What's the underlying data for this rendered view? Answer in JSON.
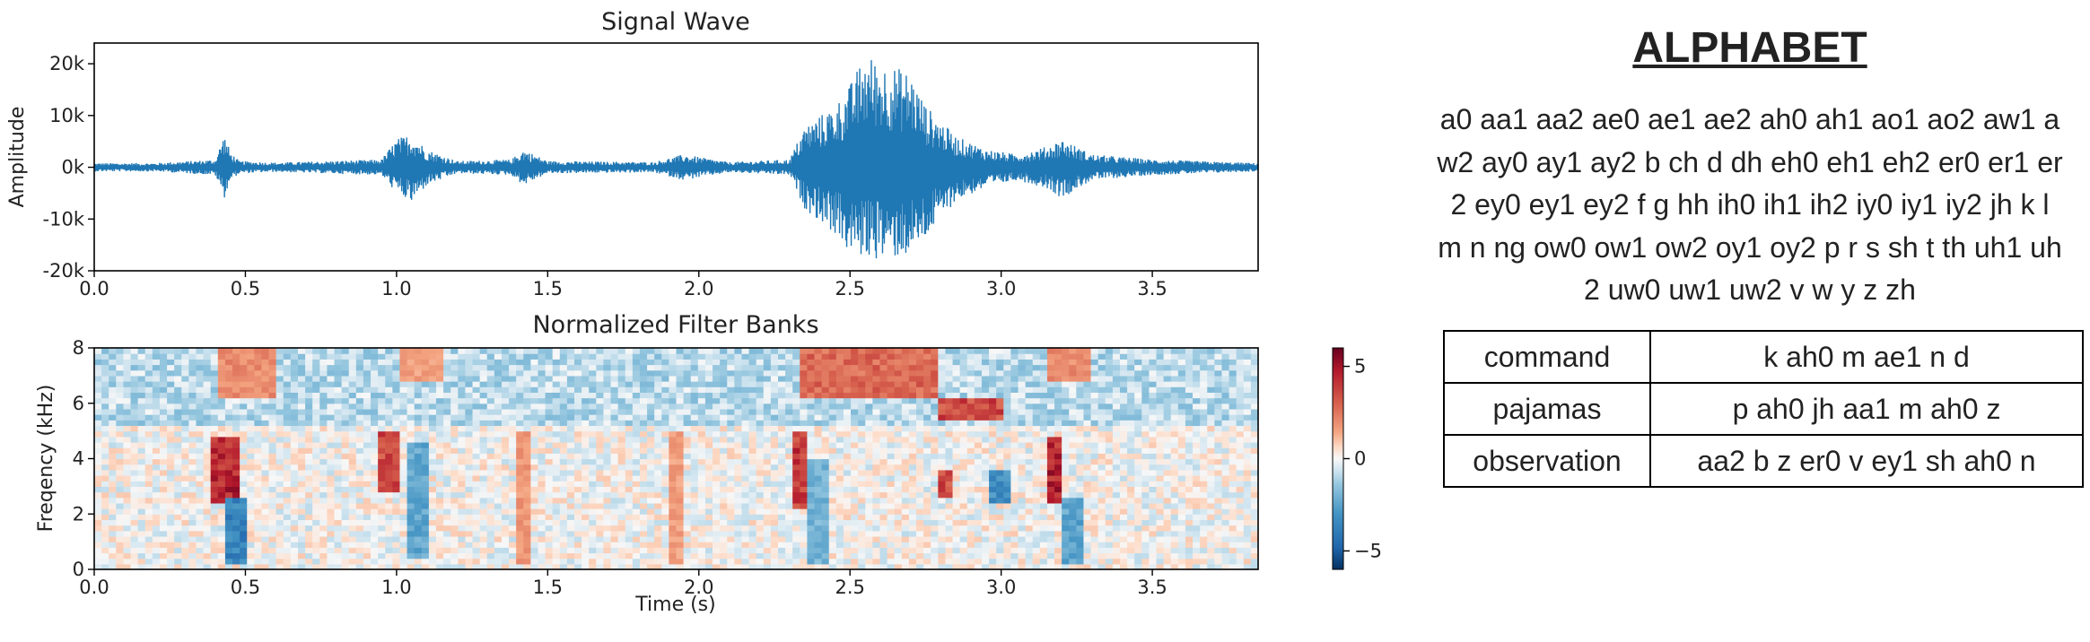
{
  "chart_data": [
    {
      "type": "line",
      "title": "Signal Wave",
      "xlabel": "",
      "ylabel": "Amplitude",
      "xlim": [
        0,
        3.85
      ],
      "ylim": [
        -20000,
        24000
      ],
      "xticks": [
        0,
        0.5,
        1.0,
        1.5,
        2.0,
        2.5,
        3.0,
        3.5
      ],
      "xtick_labels": [
        "0.0",
        "0.5",
        "1.0",
        "1.5",
        "2.0",
        "2.5",
        "3.0",
        "3.5"
      ],
      "yticks": [
        -20000,
        -10000,
        0,
        10000,
        20000
      ],
      "ytick_labels": [
        "-20k",
        "-10k",
        "0k",
        "10k",
        "20k"
      ],
      "color": "#1f77b4",
      "series": [
        {
          "x": [
            0.0,
            0.2,
            0.4,
            0.43,
            0.45,
            0.48,
            0.6,
            0.95,
            1.0,
            1.05,
            1.1,
            1.2,
            1.38,
            1.42,
            1.5,
            1.85,
            1.95,
            2.1,
            2.3,
            2.35,
            2.45,
            2.5,
            2.55,
            2.62,
            2.7,
            2.75,
            2.8,
            2.85,
            2.95,
            3.05,
            3.15,
            3.2,
            3.3,
            3.5,
            3.85
          ],
          "y_upper": [
            800,
            800,
            1500,
            6500,
            3000,
            1200,
            900,
            1500,
            5500,
            6500,
            3500,
            1200,
            1500,
            3500,
            1200,
            1000,
            2500,
            1000,
            1500,
            8000,
            12000,
            16000,
            22000,
            20000,
            18500,
            12000,
            9000,
            6000,
            3500,
            2500,
            4000,
            5500,
            2500,
            1500,
            800
          ],
          "y_lower": [
            -800,
            -800,
            -1500,
            -6000,
            -2500,
            -1200,
            -900,
            -1500,
            -5000,
            -7000,
            -3500,
            -1200,
            -1500,
            -3500,
            -1200,
            -1000,
            -2500,
            -1000,
            -1500,
            -8000,
            -13000,
            -17000,
            -17500,
            -18000,
            -17000,
            -14000,
            -10000,
            -6500,
            -4000,
            -2500,
            -4000,
            -6000,
            -2500,
            -1500,
            -800
          ]
        }
      ]
    },
    {
      "type": "heatmap",
      "title": "Normalized Filter Banks",
      "xlabel": "Time (s)",
      "ylabel": "Freqency (kHz)",
      "xlim": [
        0,
        3.85
      ],
      "ylim": [
        0,
        8
      ],
      "xticks": [
        0,
        0.5,
        1.0,
        1.5,
        2.0,
        2.5,
        3.0,
        3.5
      ],
      "xtick_labels": [
        "0.0",
        "0.5",
        "1.0",
        "1.5",
        "2.0",
        "2.5",
        "3.0",
        "3.5"
      ],
      "yticks": [
        0,
        2,
        4,
        6,
        8
      ],
      "ytick_labels": [
        "0",
        "2",
        "4",
        "6",
        "8"
      ],
      "colormap": "RdBu_r",
      "vmin": -6,
      "vmax": 6,
      "colorbar_ticks": [
        5,
        0,
        -5
      ],
      "colorbar_tick_labels": [
        "5",
        "0",
        "−5"
      ],
      "features": [
        {
          "t0": 0.38,
          "t1": 0.47,
          "f0": 2.5,
          "f1": 4.8,
          "value": 5.5
        },
        {
          "t0": 0.43,
          "t1": 0.5,
          "f0": 0.3,
          "f1": 2.5,
          "value": -4.5
        },
        {
          "t0": 0.42,
          "t1": 0.6,
          "f0": 6.3,
          "f1": 8.0,
          "value": 2.5
        },
        {
          "t0": 0.95,
          "t1": 1.02,
          "f0": 2.8,
          "f1": 5.0,
          "value": 4.5
        },
        {
          "t0": 1.03,
          "t1": 1.1,
          "f0": 0.5,
          "f1": 4.5,
          "value": -3.0
        },
        {
          "t0": 1.0,
          "t1": 1.15,
          "f0": 6.8,
          "f1": 8.0,
          "value": 2.0
        },
        {
          "t0": 1.4,
          "t1": 1.45,
          "f0": 0.3,
          "f1": 5.0,
          "value": 2.2
        },
        {
          "t0": 1.9,
          "t1": 1.95,
          "f0": 0.3,
          "f1": 5.0,
          "value": 2.0
        },
        {
          "t0": 2.3,
          "t1": 2.36,
          "f0": 2.2,
          "f1": 5.0,
          "value": 5.0
        },
        {
          "t0": 2.36,
          "t1": 2.44,
          "f0": 0.2,
          "f1": 4.0,
          "value": -2.5
        },
        {
          "t0": 2.33,
          "t1": 2.8,
          "f0": 6.3,
          "f1": 8.0,
          "value": 3.5
        },
        {
          "t0": 2.78,
          "t1": 3.0,
          "f0": 5.5,
          "f1": 6.2,
          "value": 4.5
        },
        {
          "t0": 2.8,
          "t1": 2.84,
          "f0": 2.7,
          "f1": 3.6,
          "value": 4.5
        },
        {
          "t0": 2.95,
          "t1": 3.02,
          "f0": 2.5,
          "f1": 3.6,
          "value": -4.0
        },
        {
          "t0": 3.15,
          "t1": 3.2,
          "f0": 2.5,
          "f1": 4.8,
          "value": 5.5
        },
        {
          "t0": 3.2,
          "t1": 3.28,
          "f0": 0.2,
          "f1": 2.5,
          "value": -3.0
        },
        {
          "t0": 3.15,
          "t1": 3.3,
          "f0": 6.8,
          "f1": 8.0,
          "value": 2.5
        }
      ]
    }
  ],
  "alphabet": {
    "title": "ALPHABET",
    "text": "a0 aa1 aa2 ae0 ae1 ae2 ah0 ah1 ao1 ao2 aw1 aw2 ay0 ay1 ay2 b ch d dh eh0 eh1 eh2 er0 er1 er2 ey0 ey1 ey2 f g hh ih0 ih1 ih2 iy0 iy1 iy2 jh k l m n ng ow0 ow1 ow2 oy1 oy2 p r s sh t th uh1 uh2 uw0 uw1 uw2 v w y z zh"
  },
  "words": [
    {
      "word": "command",
      "phonemes": "k ah0 m ae1 n d"
    },
    {
      "word": "pajamas",
      "phonemes": "p ah0 jh aa1 m ah0 z"
    },
    {
      "word": "observation",
      "phonemes": "aa2 b z er0 v ey1 sh ah0 n"
    }
  ]
}
